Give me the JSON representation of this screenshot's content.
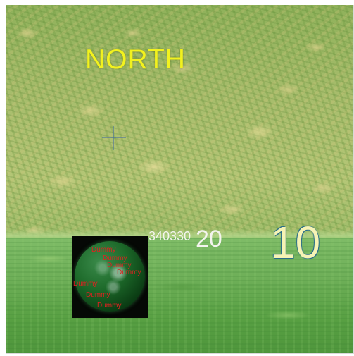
{
  "scene": {
    "compass_label": "NORTH",
    "compass_label_color": "#f2f21e"
  },
  "heading_strip": {
    "ticks_small": "340330",
    "tick_mid": "20",
    "tick_current": "10"
  },
  "minimap": {
    "entities": [
      "Dummy",
      "Dummy",
      "Dummy",
      "Dummy",
      "Dummy",
      "Dummy",
      "Dummy"
    ],
    "entity_color": "#e02020"
  }
}
